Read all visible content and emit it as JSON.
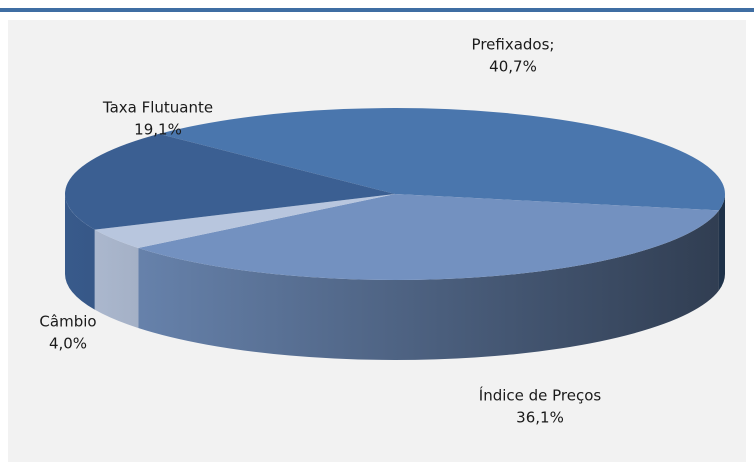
{
  "chart_data": {
    "type": "pie3d",
    "categories": [
      "Prefixados;",
      "Índice de Preços",
      "Câmbio",
      "Taxa Flutuante"
    ],
    "values": [
      40.7,
      36.1,
      4.0,
      19.1
    ],
    "value_labels": [
      "40,7%",
      "36,1%",
      "4,0%",
      "19,1%"
    ],
    "colors": [
      "#4a76ad",
      "#7391c0",
      "#b8c6de",
      "#3b5f92"
    ]
  }
}
